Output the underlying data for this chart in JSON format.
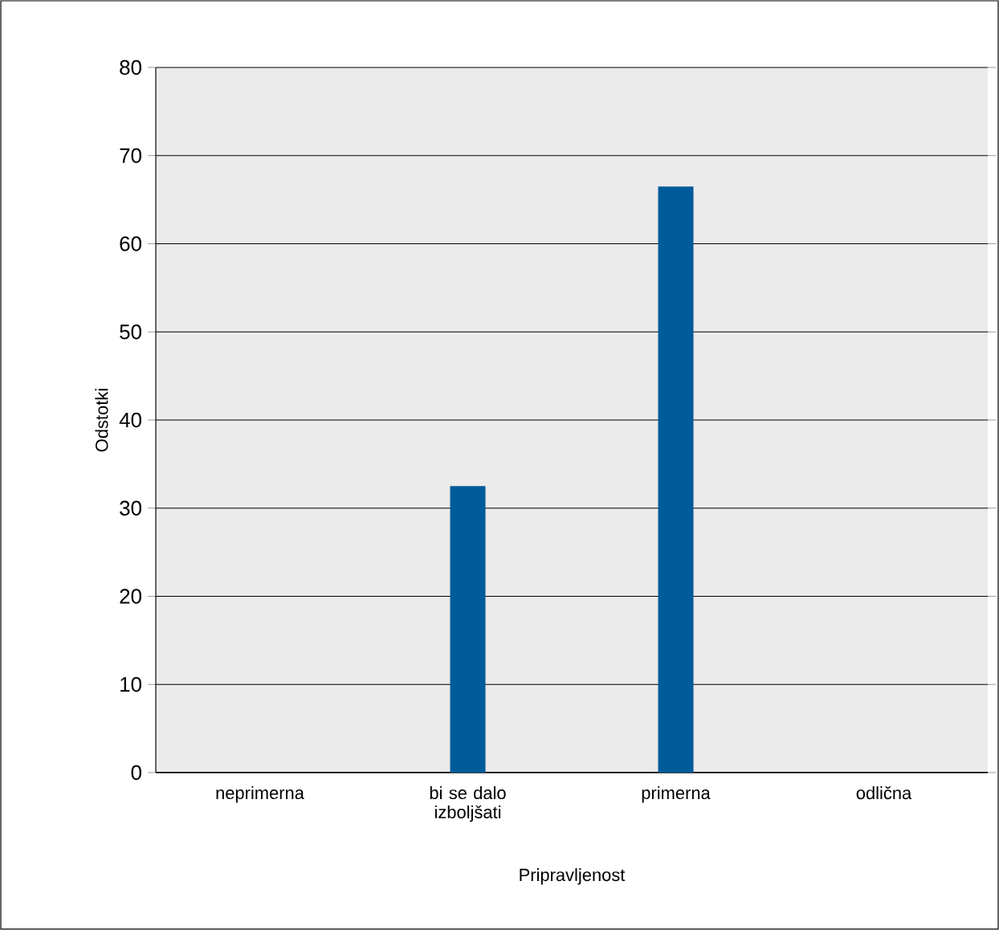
{
  "chart_data": {
    "type": "bar",
    "xlabel": "Pripravljenost",
    "ylabel": "Odstotki",
    "categories": [
      "neprimerna",
      "bi se dalo izboljšati",
      "primerna",
      "odlična"
    ],
    "values": [
      0,
      32.5,
      66.5,
      0
    ],
    "color": "#005b9a",
    "ylim": [
      0,
      80
    ],
    "yticks": [
      0,
      10,
      20,
      30,
      40,
      50,
      60,
      70,
      80
    ],
    "grid": "y"
  }
}
